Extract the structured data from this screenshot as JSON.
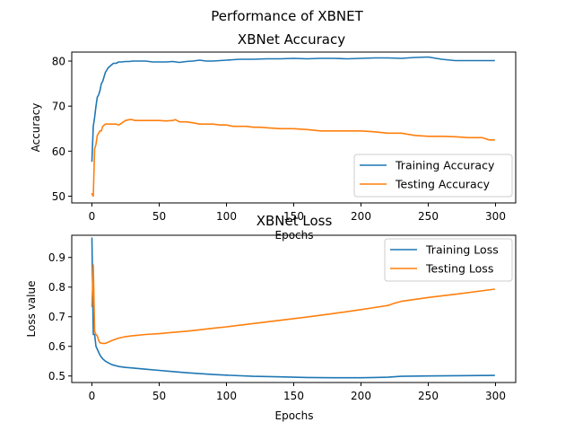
{
  "figure": {
    "suptitle": "Performance of XBNET"
  },
  "colors": {
    "series1": "#1f77b4",
    "series2": "#ff7f0e"
  },
  "chart_data": [
    {
      "type": "line",
      "title": "XBNet Accuracy",
      "xlabel": "Epochs",
      "ylabel": "Accuracy",
      "xlim": [
        -15,
        315
      ],
      "ylim": [
        48.5,
        82
      ],
      "xticks": [
        0,
        50,
        100,
        150,
        200,
        250,
        300
      ],
      "yticks": [
        50,
        60,
        70,
        80
      ],
      "legend_position": "lower-right",
      "series": [
        {
          "name": "Training Accuracy",
          "color": "#1f77b4",
          "x": [
            0,
            1,
            2,
            3,
            4,
            5,
            6,
            7,
            8,
            10,
            12,
            14,
            16,
            18,
            20,
            22,
            25,
            28,
            30,
            35,
            40,
            45,
            50,
            55,
            60,
            65,
            70,
            75,
            80,
            85,
            90,
            95,
            100,
            105,
            110,
            120,
            130,
            140,
            150,
            160,
            170,
            180,
            190,
            200,
            210,
            220,
            230,
            240,
            250,
            260,
            270,
            280,
            290,
            299
          ],
          "y": [
            57.8,
            65.5,
            67.5,
            70.0,
            72.0,
            72.5,
            73.5,
            75.0,
            75.5,
            77.5,
            78.5,
            79.0,
            79.5,
            79.5,
            79.8,
            79.8,
            79.9,
            79.9,
            80.0,
            80.0,
            80.0,
            79.8,
            79.8,
            79.8,
            79.9,
            79.7,
            79.9,
            80.0,
            80.2,
            80.0,
            80.0,
            80.1,
            80.2,
            80.3,
            80.4,
            80.4,
            80.5,
            80.5,
            80.6,
            80.5,
            80.6,
            80.6,
            80.5,
            80.6,
            80.7,
            80.7,
            80.6,
            80.8,
            80.9,
            80.4,
            80.1,
            80.1,
            80.1,
            80.1
          ]
        },
        {
          "name": "Testing Accuracy",
          "color": "#ff7f0e",
          "x": [
            0,
            1,
            2,
            3,
            4,
            5,
            6,
            7,
            8,
            10,
            12,
            15,
            18,
            20,
            22,
            25,
            28,
            30,
            32,
            35,
            40,
            45,
            50,
            55,
            60,
            62,
            65,
            70,
            75,
            80,
            85,
            90,
            95,
            100,
            105,
            110,
            115,
            120,
            125,
            130,
            140,
            150,
            160,
            170,
            180,
            190,
            200,
            210,
            220,
            230,
            240,
            250,
            260,
            270,
            280,
            290,
            295,
            299
          ],
          "y": [
            50.5,
            50.0,
            60.5,
            61.5,
            63.5,
            64.0,
            64.5,
            64.5,
            65.5,
            66.0,
            66.0,
            66.0,
            66.0,
            65.8,
            66.2,
            66.8,
            67.0,
            67.0,
            66.8,
            66.8,
            66.8,
            66.8,
            66.8,
            66.7,
            66.8,
            67.0,
            66.5,
            66.5,
            66.3,
            66.0,
            66.0,
            66.0,
            65.8,
            65.8,
            65.5,
            65.5,
            65.5,
            65.3,
            65.3,
            65.2,
            65.0,
            65.0,
            64.8,
            64.5,
            64.5,
            64.5,
            64.5,
            64.3,
            64.0,
            64.0,
            63.5,
            63.3,
            63.3,
            63.2,
            63.0,
            63.0,
            62.5,
            62.5
          ]
        }
      ]
    },
    {
      "type": "line",
      "title": "XBNet Loss",
      "xlabel": "Epochs",
      "ylabel": "Loss value",
      "xlim": [
        -15,
        315
      ],
      "ylim": [
        0.478,
        0.975
      ],
      "xticks": [
        0,
        50,
        100,
        150,
        200,
        250,
        300
      ],
      "yticks": [
        0.5,
        0.6,
        0.7,
        0.8,
        0.9
      ],
      "legend_position": "upper-right",
      "series": [
        {
          "name": "Training Loss",
          "color": "#1f77b4",
          "x": [
            0,
            1,
            2,
            3,
            4,
            5,
            6,
            8,
            10,
            12,
            15,
            20,
            25,
            30,
            40,
            50,
            60,
            70,
            80,
            90,
            100,
            120,
            140,
            160,
            180,
            200,
            210,
            220,
            230,
            250,
            270,
            299
          ],
          "y": [
            0.965,
            0.64,
            0.64,
            0.6,
            0.59,
            0.58,
            0.57,
            0.558,
            0.55,
            0.545,
            0.538,
            0.532,
            0.529,
            0.527,
            0.523,
            0.519,
            0.515,
            0.511,
            0.508,
            0.505,
            0.503,
            0.499,
            0.497,
            0.495,
            0.494,
            0.494,
            0.495,
            0.496,
            0.499,
            0.5,
            0.501,
            0.502
          ]
        },
        {
          "name": "Testing Loss",
          "color": "#ff7f0e",
          "x": [
            0,
            1,
            2,
            3,
            4,
            5,
            6,
            8,
            10,
            12,
            15,
            20,
            25,
            30,
            40,
            50,
            60,
            70,
            80,
            90,
            100,
            120,
            140,
            160,
            180,
            200,
            210,
            220,
            225,
            230,
            250,
            270,
            299
          ],
          "y": [
            0.735,
            0.875,
            0.65,
            0.64,
            0.635,
            0.62,
            0.612,
            0.61,
            0.61,
            0.614,
            0.62,
            0.628,
            0.633,
            0.636,
            0.64,
            0.643,
            0.647,
            0.651,
            0.656,
            0.661,
            0.666,
            0.677,
            0.688,
            0.699,
            0.711,
            0.724,
            0.731,
            0.738,
            0.746,
            0.752,
            0.765,
            0.776,
            0.793
          ]
        }
      ]
    }
  ]
}
